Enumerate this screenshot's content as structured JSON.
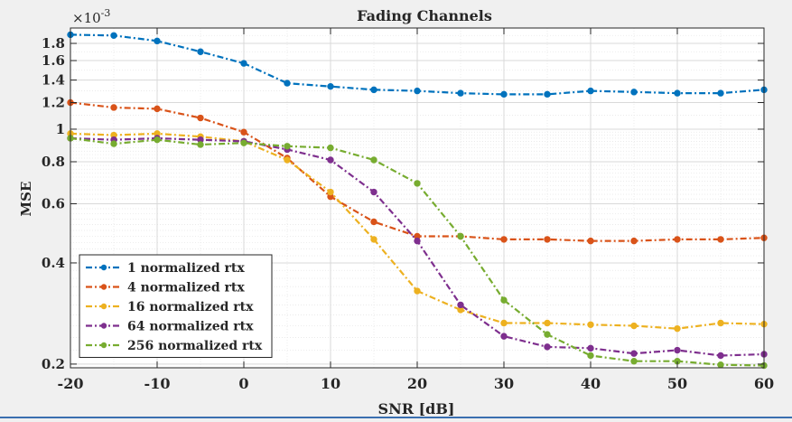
{
  "chart_data": {
    "type": "line",
    "title": "Fading Channels",
    "xlabel": "SNR [dB]",
    "ylabel": "MSE",
    "y_exponent_label": "×10",
    "y_exponent_power": "-3",
    "y_scale": "log",
    "xlim": [
      -20,
      60
    ],
    "ylim": [
      0.195,
      2.0
    ],
    "grid": true,
    "minor_grid": true,
    "legend_position": "bottom-left",
    "x_ticks": [
      -20,
      -10,
      0,
      10,
      20,
      30,
      40,
      50,
      60
    ],
    "x_tick_labels": [
      "-20",
      "-10",
      "0",
      "10",
      "20",
      "30",
      "40",
      "50",
      "60"
    ],
    "y_ticks": [
      0.2,
      0.4,
      0.6,
      0.8,
      1.0,
      1.2,
      1.4,
      1.6,
      1.8
    ],
    "y_tick_labels": [
      "0.2",
      "0.4",
      "0.6",
      "0.8",
      "1",
      "1.2",
      "1.4",
      "1.6",
      "1.8"
    ],
    "x": [
      -20,
      -15,
      -10,
      -5,
      0,
      5,
      10,
      15,
      20,
      25,
      30,
      35,
      40,
      45,
      50,
      55,
      60
    ],
    "series": [
      {
        "name": "1 normalized rtx",
        "color": "#0072bd",
        "values": [
          1.91,
          1.9,
          1.83,
          1.7,
          1.57,
          1.37,
          1.34,
          1.31,
          1.3,
          1.28,
          1.27,
          1.27,
          1.3,
          1.29,
          1.28,
          1.28,
          1.31
        ]
      },
      {
        "name": "4 normalized rtx",
        "color": "#d95319",
        "values": [
          1.2,
          1.16,
          1.15,
          1.08,
          0.98,
          0.82,
          0.63,
          0.53,
          0.48,
          0.48,
          0.47,
          0.47,
          0.465,
          0.465,
          0.47,
          0.47,
          0.475
        ]
      },
      {
        "name": "16 normalized rtx",
        "color": "#edb120",
        "values": [
          0.97,
          0.96,
          0.97,
          0.95,
          0.92,
          0.81,
          0.65,
          0.47,
          0.33,
          0.29,
          0.265,
          0.265,
          0.262,
          0.26,
          0.255,
          0.265,
          0.263
        ]
      },
      {
        "name": "64 normalized rtx",
        "color": "#7e2f8e",
        "values": [
          0.94,
          0.93,
          0.94,
          0.93,
          0.92,
          0.87,
          0.81,
          0.65,
          0.465,
          0.3,
          0.242,
          0.225,
          0.223,
          0.215,
          0.22,
          0.212,
          0.214
        ]
      },
      {
        "name": "256 normalized rtx",
        "color": "#77ac30",
        "values": [
          0.94,
          0.905,
          0.93,
          0.9,
          0.91,
          0.89,
          0.88,
          0.81,
          0.69,
          0.48,
          0.31,
          0.245,
          0.212,
          0.204,
          0.204,
          0.199,
          0.198
        ]
      }
    ]
  }
}
